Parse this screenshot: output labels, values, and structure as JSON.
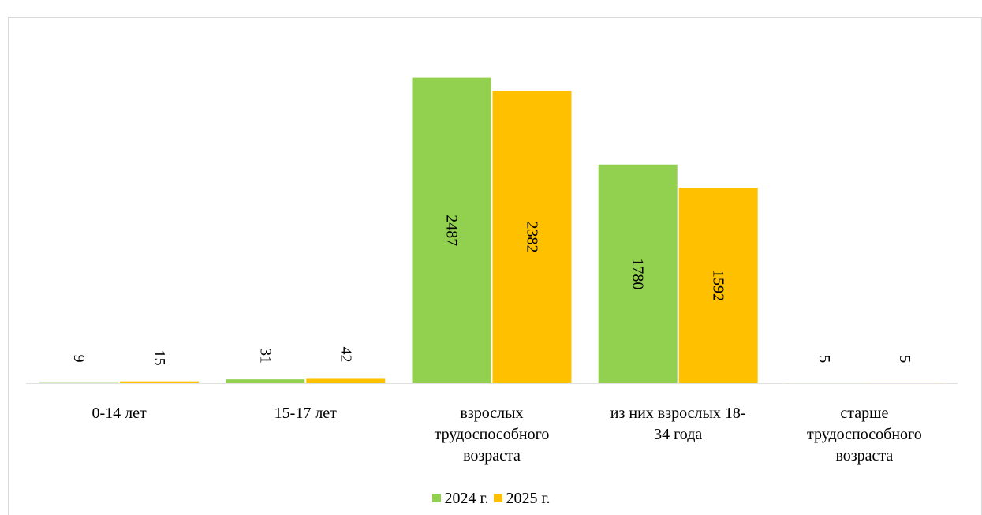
{
  "chart_data": {
    "type": "bar",
    "categories": [
      "0-14 лет",
      "15-17 лет",
      "взрослых\nтрудоспособного\nвозраста",
      "из них взрослых 18-\n34 года",
      "старше\nтрудоспособного\nвозраста"
    ],
    "series": [
      {
        "name": "2024 г.",
        "values": [
          9,
          31,
          2487,
          1780,
          5
        ],
        "color": "#92D050"
      },
      {
        "name": "2025 г.",
        "values": [
          15,
          42,
          2382,
          1592,
          5
        ],
        "color": "#FFC000"
      }
    ],
    "ylim": [
      0,
      2600
    ],
    "grid": false,
    "legend": "bottom",
    "data_labels": "rotated-vertical"
  }
}
